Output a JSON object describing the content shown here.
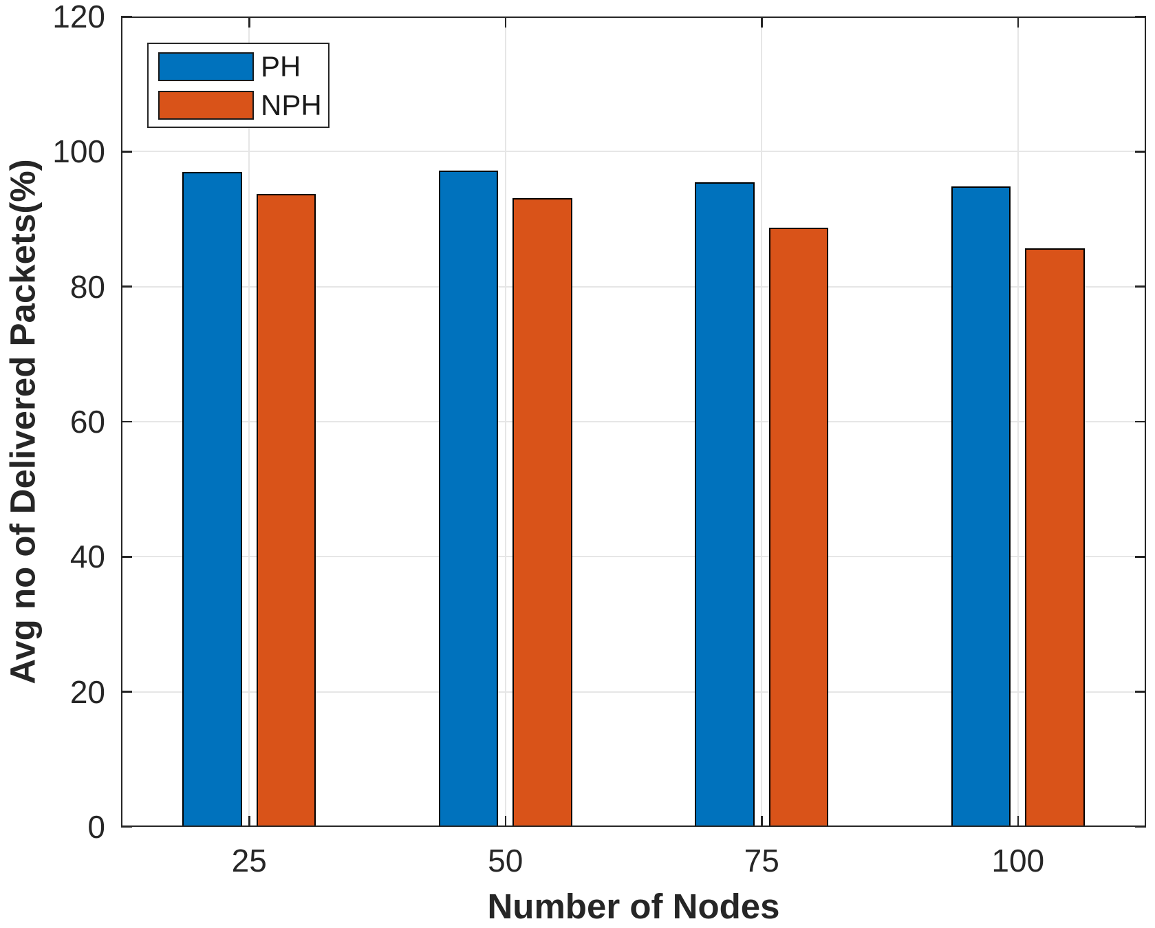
{
  "chart_data": {
    "type": "bar",
    "categories": [
      "25",
      "50",
      "75",
      "100"
    ],
    "series": [
      {
        "name": "PH",
        "color": "#0072BD",
        "values": [
          97.0,
          97.2,
          95.5,
          94.8
        ]
      },
      {
        "name": "NPH",
        "color": "#D95319",
        "values": [
          93.7,
          93.1,
          88.7,
          85.7
        ]
      }
    ],
    "xlabel": "Number of Nodes",
    "ylabel": "Avg no of Delivered Packets(%)",
    "ylim": [
      0,
      120
    ],
    "yticks": [
      0,
      20,
      40,
      60,
      80,
      100,
      120
    ],
    "grid": true,
    "legend_position": "top-left-inside",
    "bar_edge_color": "#000000",
    "grid_color": "#E6E6E6",
    "axis_color": "#262626",
    "tick_direction": "in"
  }
}
